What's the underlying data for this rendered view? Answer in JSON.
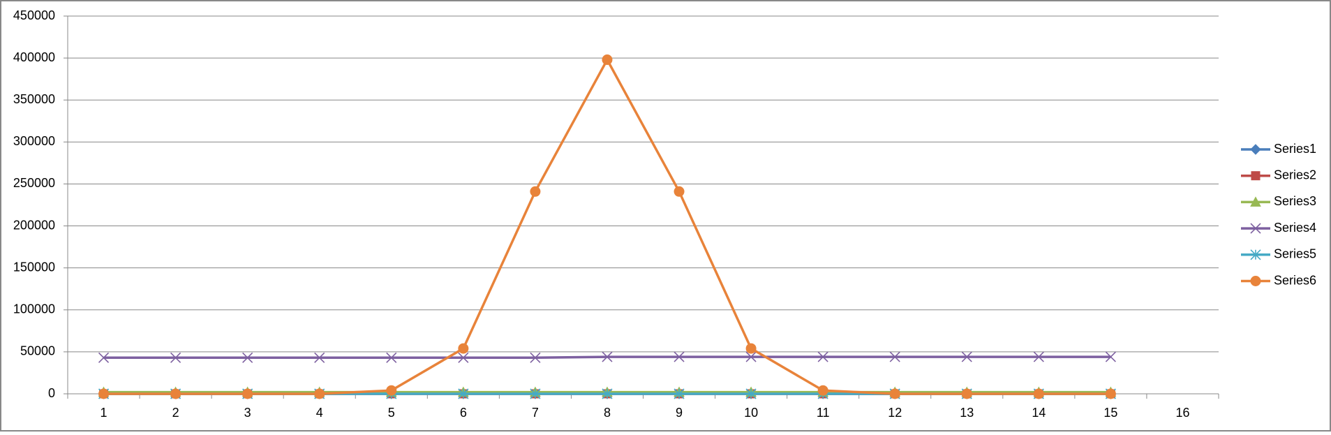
{
  "chart_data": {
    "type": "line",
    "categories": [
      "1",
      "2",
      "3",
      "4",
      "5",
      "6",
      "7",
      "8",
      "9",
      "10",
      "11",
      "12",
      "13",
      "14",
      "15",
      "16"
    ],
    "series": [
      {
        "name": "Series1",
        "color": "#4a7ebb",
        "marker": "diamond",
        "values": [
          0,
          0,
          0,
          0,
          0,
          0,
          0,
          0,
          0,
          0,
          0,
          0,
          0,
          0,
          0,
          null
        ]
      },
      {
        "name": "Series2",
        "color": "#be4b48",
        "marker": "square",
        "values": [
          0,
          0,
          0,
          0,
          0,
          0,
          0,
          0,
          0,
          0,
          0,
          0,
          0,
          0,
          0,
          null
        ]
      },
      {
        "name": "Series3",
        "color": "#98b954",
        "marker": "triangle",
        "values": [
          2000,
          2000,
          2000,
          2000,
          2000,
          2000,
          2000,
          2000,
          2000,
          2000,
          2000,
          2000,
          2000,
          2000,
          2000,
          null
        ]
      },
      {
        "name": "Series4",
        "color": "#7d60a0",
        "marker": "x",
        "values": [
          43000,
          43000,
          43000,
          43000,
          43000,
          43000,
          43000,
          44000,
          44000,
          44000,
          44000,
          44000,
          44000,
          44000,
          44000,
          null
        ]
      },
      {
        "name": "Series5",
        "color": "#46aac5",
        "marker": "star",
        "values": [
          0,
          0,
          0,
          0,
          0,
          0,
          0,
          0,
          0,
          0,
          0,
          0,
          0,
          0,
          0,
          null
        ]
      },
      {
        "name": "Series6",
        "color": "#e8833a",
        "marker": "circle",
        "values": [
          0,
          0,
          0,
          0,
          4000,
          54000,
          241000,
          398000,
          241000,
          54000,
          4000,
          0,
          0,
          0,
          0,
          null
        ]
      }
    ],
    "ylim": [
      0,
      450000
    ],
    "yticks": [
      0,
      50000,
      100000,
      150000,
      200000,
      250000,
      300000,
      350000,
      400000,
      450000
    ],
    "grid": true,
    "legend": "right"
  }
}
